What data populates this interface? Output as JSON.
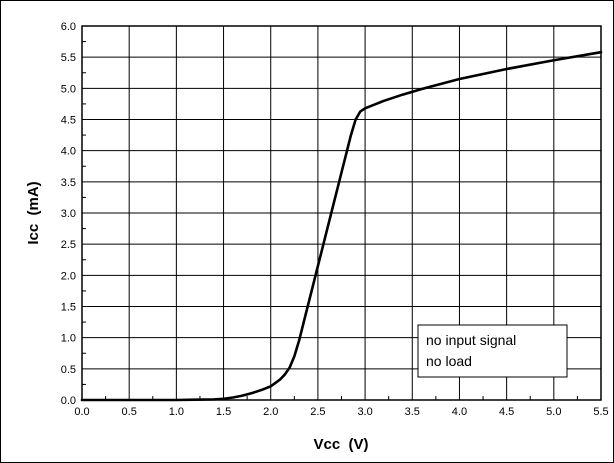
{
  "chart_data": {
    "type": "line",
    "title": "",
    "xlabel": "Vcc  (V)",
    "ylabel": "Icc  (mA)",
    "xlim": [
      0.0,
      5.5
    ],
    "ylim": [
      0.0,
      6.0
    ],
    "xticks": [
      "0.0",
      "0.5",
      "1.0",
      "1.5",
      "2.0",
      "2.5",
      "3.0",
      "3.5",
      "4.0",
      "4.5",
      "5.0",
      "5.5"
    ],
    "yticks": [
      "0.0",
      "0.5",
      "1.0",
      "1.5",
      "2.0",
      "2.5",
      "3.0",
      "3.5",
      "4.0",
      "4.5",
      "5.0",
      "5.5",
      "6.0"
    ],
    "grid": true,
    "series": [
      {
        "x": [
          0.0,
          0.5,
          1.0,
          1.2,
          1.4,
          1.5,
          1.6,
          1.7,
          1.8,
          1.9,
          2.0,
          2.1,
          2.15,
          2.2,
          2.25,
          2.3,
          2.35,
          2.4,
          2.45,
          2.5,
          2.55,
          2.6,
          2.65,
          2.7,
          2.75,
          2.8,
          2.85,
          2.9,
          2.95,
          3.0,
          3.1,
          3.2,
          3.4,
          3.6,
          3.8,
          4.0,
          4.5,
          5.0,
          5.5
        ],
        "y": [
          0.0,
          0.0,
          0.0,
          0.005,
          0.01,
          0.02,
          0.04,
          0.07,
          0.11,
          0.16,
          0.22,
          0.33,
          0.41,
          0.52,
          0.7,
          0.95,
          1.25,
          1.55,
          1.85,
          2.15,
          2.45,
          2.75,
          3.05,
          3.35,
          3.65,
          3.95,
          4.25,
          4.5,
          4.63,
          4.68,
          4.74,
          4.8,
          4.9,
          4.99,
          5.07,
          5.15,
          5.31,
          5.45,
          5.58
        ]
      }
    ],
    "annotations": [
      "no input signal",
      "no load"
    ]
  }
}
